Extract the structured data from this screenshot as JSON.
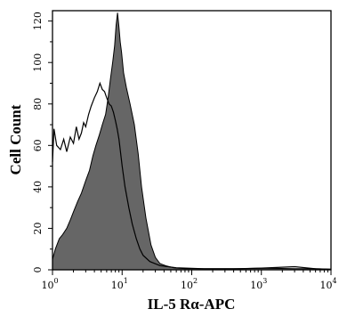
{
  "chart_data": {
    "type": "area",
    "title": "",
    "xlabel": "IL-5 Rα-APC",
    "ylabel": "Cell Count",
    "xscale": "log",
    "xlim": [
      1,
      10000
    ],
    "ylim": [
      0,
      125
    ],
    "y_ticks": [
      "0",
      "20",
      "40",
      "60",
      "80",
      "100",
      "120"
    ],
    "x_ticks": [
      {
        "base": "10",
        "exp": "0"
      },
      {
        "base": "10",
        "exp": "1"
      },
      {
        "base": "10",
        "exp": "2"
      },
      {
        "base": "10",
        "exp": "3"
      },
      {
        "base": "10",
        "exp": "4"
      }
    ],
    "grid": false,
    "legend": "none",
    "series": [
      {
        "style": "filled",
        "fill": "#666666",
        "x": [
          1,
          1.1,
          1.25,
          1.4,
          1.6,
          1.8,
          2,
          2.3,
          2.6,
          3,
          3.4,
          3.8,
          4.2,
          4.7,
          5.2,
          5.8,
          6.3,
          6.8,
          7.3,
          7.8,
          8.2,
          8.6,
          9,
          9.4,
          9.8,
          10.5,
          11.5,
          13,
          15,
          17,
          19,
          22,
          26,
          30,
          35,
          42,
          55,
          80,
          150,
          400,
          1000,
          3000,
          6000,
          10000
        ],
        "y": [
          5,
          10,
          15,
          17,
          20,
          24,
          28,
          33,
          37,
          43,
          48,
          55,
          60,
          65,
          70,
          75,
          83,
          92,
          100,
          108,
          118,
          124,
          117,
          110,
          105,
          95,
          88,
          80,
          70,
          56,
          40,
          25,
          12,
          6,
          3,
          2,
          1,
          0.5,
          0.5,
          0.5,
          0.8,
          0.5,
          0.5,
          0.3
        ]
      },
      {
        "style": "line",
        "color": "#000000",
        "x": [
          1,
          1.05,
          1.15,
          1.3,
          1.45,
          1.6,
          1.8,
          2,
          2.2,
          2.4,
          2.6,
          2.8,
          3.0,
          3.3,
          3.6,
          4,
          4.4,
          4.8,
          5.2,
          5.6,
          6,
          6.5,
          7,
          7.5,
          8,
          8.5,
          9,
          10,
          11,
          12.5,
          14,
          16,
          18,
          20,
          25,
          35,
          60,
          150,
          500,
          1000,
          3000,
          6000,
          10000
        ],
        "y": [
          52,
          68,
          60,
          58,
          63,
          57,
          64,
          61,
          69,
          63,
          66,
          71,
          69,
          75,
          79,
          83,
          86,
          90,
          87,
          86,
          83,
          80,
          79,
          76,
          72,
          68,
          63,
          50,
          40,
          30,
          22,
          15,
          10,
          7,
          4,
          2,
          1,
          0.5,
          0.5,
          0.8,
          1.5,
          0.5,
          0.3
        ]
      }
    ]
  }
}
